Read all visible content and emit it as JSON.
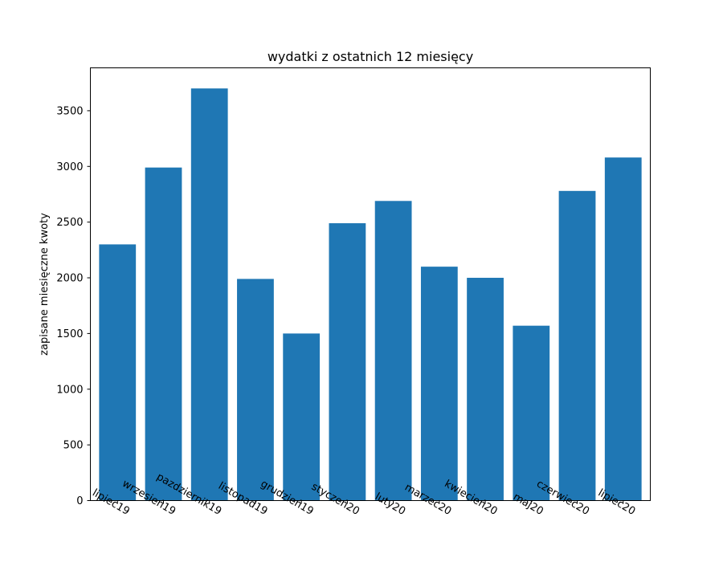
{
  "chart_data": {
    "type": "bar",
    "title": "wydatki z ostatnich 12 miesięcy",
    "xlabel": "",
    "ylabel": "zapisane miesięczne kwoty",
    "categories": [
      "lipiec19",
      "wrzesień19",
      "pazdziernik19",
      "listopad19",
      "grudzień19",
      "styczeń20",
      "luty20",
      "marzec20",
      "kwiecień20",
      "maj20",
      "czerwiec20",
      "lipiec20"
    ],
    "values": [
      2300,
      2990,
      3700,
      1990,
      1500,
      2490,
      2690,
      2100,
      2000,
      1570,
      2780,
      3080
    ],
    "ylim": [
      0,
      3885
    ],
    "yticks": [
      0,
      500,
      1000,
      1500,
      2000,
      2500,
      3000,
      3500
    ],
    "bar_color": "#1f77b4",
    "grid": false,
    "legend": "none"
  }
}
